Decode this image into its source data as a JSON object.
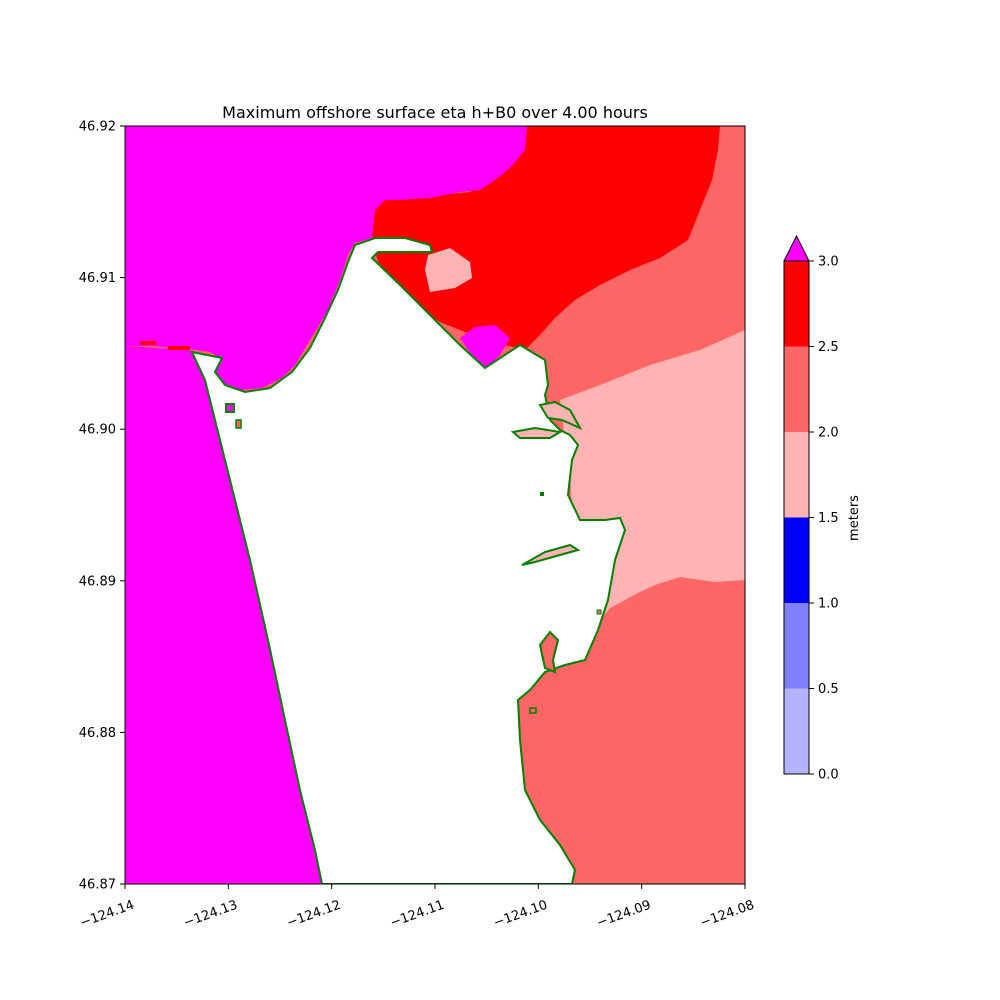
{
  "chart_data": {
    "type": "heatmap",
    "title": "Maximum offshore surface eta h+B0 over 4.00 hours",
    "xlabel": "",
    "ylabel": "",
    "xlim": [
      -124.14,
      -124.08
    ],
    "ylim": [
      46.87,
      46.92
    ],
    "xticks": [
      "−124.14",
      "−124.13",
      "−124.12",
      "−124.11",
      "−124.10",
      "−124.09",
      "−124.08"
    ],
    "yticks": [
      "46.87",
      "46.88",
      "46.89",
      "46.90",
      "46.91",
      "46.92"
    ],
    "grid": false,
    "colorbar": {
      "label": "meters",
      "ticks": [
        "0.0",
        "0.5",
        "1.0",
        "1.5",
        "2.0",
        "2.5",
        "3.0"
      ],
      "levels": [
        0.0,
        0.5,
        1.0,
        1.5,
        2.0,
        2.5,
        3.0
      ],
      "colors": [
        "#b3b3ff",
        "#8080ff",
        "#0000ff",
        "#ffb3b3",
        "#ff6666",
        "#ff0000"
      ],
      "extend_max_color": "#ff00ff"
    },
    "regions": [
      {
        "value_range": "> 3.0",
        "color": "#ff00ff",
        "area": "open ocean west and north-west"
      },
      {
        "value_range": "2.5 - 3.0",
        "color": "#ff0000",
        "area": "bay entrance north"
      },
      {
        "value_range": "2.0 - 2.5",
        "color": "#ff6666",
        "area": "north-east and south-east bay"
      },
      {
        "value_range": "1.5 - 2.0",
        "color": "#ffb3b3",
        "area": "central-east bay"
      },
      {
        "value_range": "land",
        "color": "#ffffff",
        "area": "peninsula"
      }
    ],
    "shoreline_color": "#008000"
  }
}
